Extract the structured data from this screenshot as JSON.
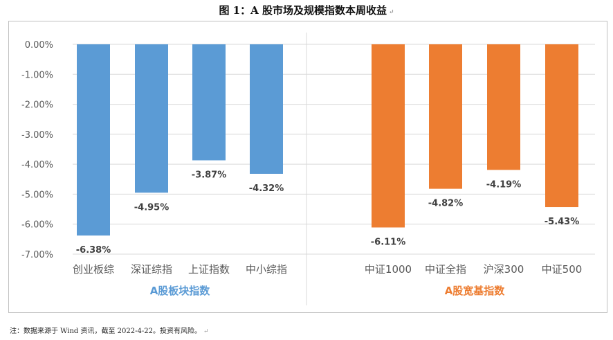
{
  "figure_title": "图 1：A 股市场及规模指数本周收益",
  "note": "注：数据来源于 Wind 资讯，截至 2022-4-22。投资有风险。",
  "colors": {
    "blue": "#5b9bd5",
    "orange": "#ed7d31",
    "grid": "#d9d9d9",
    "axis_text": "#595959",
    "label_text": "#404040"
  },
  "chart_data": {
    "type": "bar",
    "ylim": [
      -7,
      0
    ],
    "ytick_step": 1,
    "ytick_format": "percent_2dp",
    "grid": true,
    "groups": [
      {
        "name": "A股板块指数",
        "color": "#5b9bd5",
        "categories": [
          "创业板综",
          "深证综指",
          "上证指数",
          "中小综指"
        ],
        "values": [
          -6.38,
          -4.95,
          -3.87,
          -4.32
        ],
        "value_labels": [
          "-6.38%",
          "-4.95%",
          "-3.87%",
          "-4.32%"
        ]
      },
      {
        "name": "A股宽基指数",
        "color": "#ed7d31",
        "categories": [
          "中证1000",
          "中证全指",
          "沪深300",
          "中证500"
        ],
        "values": [
          -6.11,
          -4.82,
          -4.19,
          -5.43
        ],
        "value_labels": [
          "-6.11%",
          "-4.82%",
          "-4.19%",
          "-5.43%"
        ]
      }
    ]
  }
}
